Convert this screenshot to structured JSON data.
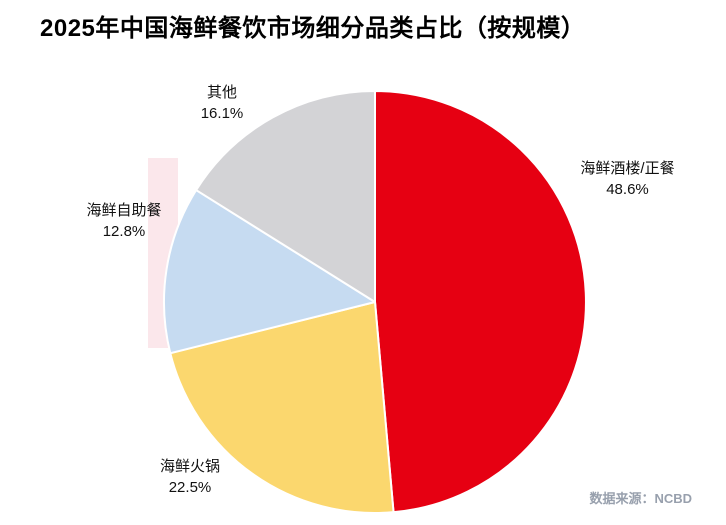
{
  "title": "2025年中国海鲜餐饮市场细分品类占比（按规模）",
  "source": "数据来源：NCBD",
  "chart_data": {
    "type": "pie",
    "title": "2025年中国海鲜餐饮市场细分品类占比（按规模）",
    "start_angle_deg": 0,
    "direction": "clockwise",
    "legend_position": "none",
    "value_suffix": "%",
    "slices": [
      {
        "label": "海鲜酒楼/正餐",
        "value": 48.6,
        "pct_label": "48.6%",
        "color": "#e60012"
      },
      {
        "label": "海鲜火锅",
        "value": 22.5,
        "pct_label": "22.5%",
        "color": "#fbd76e"
      },
      {
        "label": "海鲜自助餐",
        "value": 12.8,
        "pct_label": "12.8%",
        "color": "#c6dbf1"
      },
      {
        "label": "其他",
        "value": 16.1,
        "pct_label": "16.1%",
        "color": "#d3d3d6"
      }
    ]
  }
}
